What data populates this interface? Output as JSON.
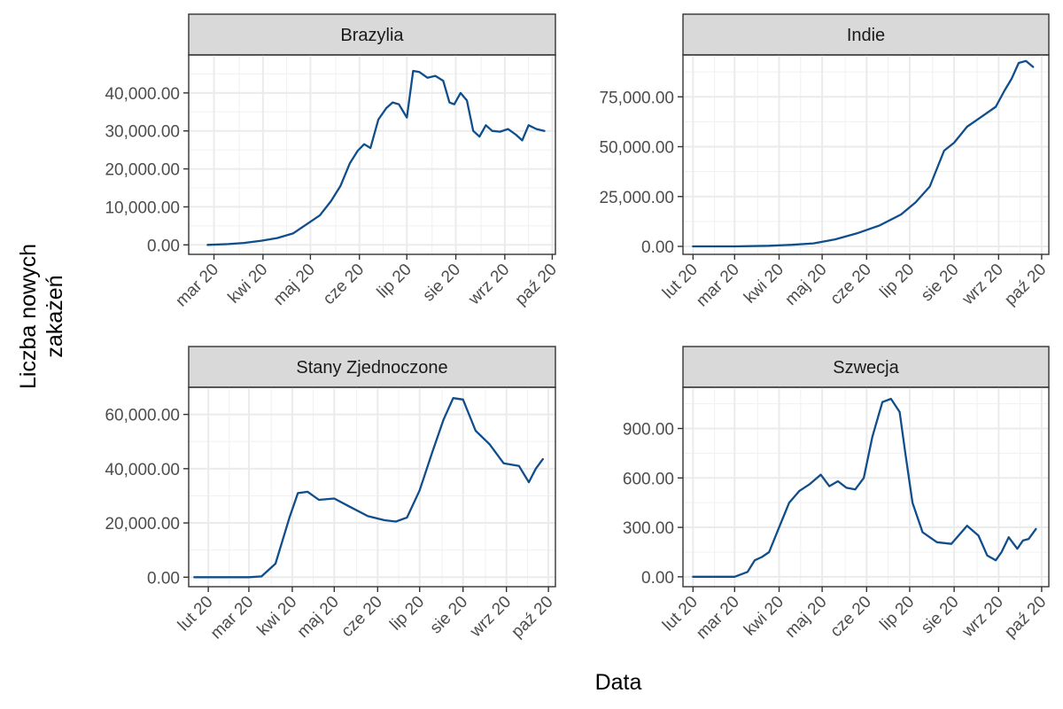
{
  "figure": {
    "xlabel": "Data",
    "ylabel_line1": "Liczba nowych",
    "ylabel_line2": "zakażeń",
    "line_color": "#104e8b"
  },
  "chart_data": [
    {
      "type": "line",
      "title": "Brazylia",
      "x_ticks": [
        {
          "date": "2020-03-01",
          "label": "mar 20"
        },
        {
          "date": "2020-04-01",
          "label": "kwi 20"
        },
        {
          "date": "2020-05-01",
          "label": "maj 20"
        },
        {
          "date": "2020-06-01",
          "label": "cze 20"
        },
        {
          "date": "2020-07-01",
          "label": "lip 20"
        },
        {
          "date": "2020-08-01",
          "label": "sie 20"
        },
        {
          "date": "2020-09-01",
          "label": "wrz 20"
        },
        {
          "date": "2020-10-01",
          "label": "paź 20"
        }
      ],
      "xlim": [
        "2020-02-14",
        "2020-10-03"
      ],
      "y_ticks": [
        {
          "value": 0,
          "label": "0.00"
        },
        {
          "value": 10000,
          "label": "10,000.00"
        },
        {
          "value": 20000,
          "label": "20,000.00"
        },
        {
          "value": 30000,
          "label": "30,000.00"
        },
        {
          "value": 40000,
          "label": "40,000.00"
        }
      ],
      "ylim": [
        -2500,
        50000
      ],
      "series": [
        {
          "x": [
            "2020-02-26",
            "2020-03-10",
            "2020-03-20",
            "2020-03-31",
            "2020-04-10",
            "2020-04-20",
            "2020-04-30",
            "2020-05-07",
            "2020-05-14",
            "2020-05-20",
            "2020-05-26",
            "2020-05-31",
            "2020-06-04",
            "2020-06-08",
            "2020-06-13",
            "2020-06-18",
            "2020-06-22",
            "2020-06-26",
            "2020-07-01",
            "2020-07-05",
            "2020-07-09",
            "2020-07-14",
            "2020-07-19",
            "2020-07-24",
            "2020-07-28",
            "2020-07-31",
            "2020-08-04",
            "2020-08-08",
            "2020-08-12",
            "2020-08-16",
            "2020-08-20",
            "2020-08-24",
            "2020-08-29",
            "2020-09-03",
            "2020-09-08",
            "2020-09-12",
            "2020-09-16",
            "2020-09-21",
            "2020-09-26"
          ],
          "y": [
            0,
            200,
            500,
            1100,
            1800,
            3000,
            5800,
            7800,
            11500,
            15500,
            21500,
            24800,
            26500,
            25500,
            33000,
            36000,
            37500,
            37000,
            33500,
            45800,
            45500,
            44000,
            44500,
            43200,
            37500,
            37000,
            40000,
            38000,
            30000,
            28500,
            31500,
            30000,
            29800,
            30500,
            29000,
            27500,
            31500,
            30500,
            30000
          ]
        }
      ]
    },
    {
      "type": "line",
      "title": "Indie",
      "x_ticks": [
        {
          "date": "2020-02-01",
          "label": "lut 20"
        },
        {
          "date": "2020-03-01",
          "label": "mar 20"
        },
        {
          "date": "2020-04-01",
          "label": "kwi 20"
        },
        {
          "date": "2020-05-01",
          "label": "maj 20"
        },
        {
          "date": "2020-06-01",
          "label": "cze 20"
        },
        {
          "date": "2020-07-01",
          "label": "lip 20"
        },
        {
          "date": "2020-08-01",
          "label": "sie 20"
        },
        {
          "date": "2020-09-01",
          "label": "wrz 20"
        },
        {
          "date": "2020-10-01",
          "label": "paź 20"
        }
      ],
      "xlim": [
        "2020-01-25",
        "2020-10-06"
      ],
      "y_ticks": [
        {
          "value": 0,
          "label": "0.00"
        },
        {
          "value": 25000,
          "label": "25,000.00"
        },
        {
          "value": 50000,
          "label": "50,000.00"
        },
        {
          "value": 75000,
          "label": "75,000.00"
        }
      ],
      "ylim": [
        -4000,
        96000
      ],
      "series": [
        {
          "x": [
            "2020-02-01",
            "2020-03-01",
            "2020-03-25",
            "2020-04-10",
            "2020-04-25",
            "2020-05-10",
            "2020-05-25",
            "2020-06-10",
            "2020-06-25",
            "2020-07-05",
            "2020-07-15",
            "2020-07-25",
            "2020-08-01",
            "2020-08-10",
            "2020-08-20",
            "2020-08-30",
            "2020-09-05",
            "2020-09-10",
            "2020-09-15",
            "2020-09-20",
            "2020-09-25"
          ],
          "y": [
            0,
            0,
            300,
            800,
            1500,
            3500,
            6500,
            10500,
            16000,
            22000,
            30000,
            48000,
            52000,
            60000,
            65000,
            70000,
            78000,
            84000,
            92000,
            93000,
            90000
          ]
        }
      ]
    },
    {
      "type": "line",
      "title": "Stany Zjednoczone",
      "x_ticks": [
        {
          "date": "2020-02-01",
          "label": "lut 20"
        },
        {
          "date": "2020-03-01",
          "label": "mar 20"
        },
        {
          "date": "2020-04-01",
          "label": "kwi 20"
        },
        {
          "date": "2020-05-01",
          "label": "maj 20"
        },
        {
          "date": "2020-06-01",
          "label": "cze 20"
        },
        {
          "date": "2020-07-01",
          "label": "lip 20"
        },
        {
          "date": "2020-08-01",
          "label": "sie 20"
        },
        {
          "date": "2020-09-01",
          "label": "wrz 20"
        },
        {
          "date": "2020-10-01",
          "label": "paź 20"
        }
      ],
      "xlim": [
        "2020-01-18",
        "2020-10-06"
      ],
      "y_ticks": [
        {
          "value": 0,
          "label": "0.00"
        },
        {
          "value": 20000,
          "label": "20,000.00"
        },
        {
          "value": 40000,
          "label": "40,000.00"
        },
        {
          "value": 60000,
          "label": "60,000.00"
        }
      ],
      "ylim": [
        -3500,
        70000
      ],
      "series": [
        {
          "x": [
            "2020-01-22",
            "2020-03-01",
            "2020-03-10",
            "2020-03-20",
            "2020-03-30",
            "2020-04-05",
            "2020-04-12",
            "2020-04-20",
            "2020-05-01",
            "2020-05-12",
            "2020-05-25",
            "2020-06-06",
            "2020-06-14",
            "2020-06-22",
            "2020-07-01",
            "2020-07-10",
            "2020-07-18",
            "2020-07-25",
            "2020-08-01",
            "2020-08-10",
            "2020-08-20",
            "2020-08-30",
            "2020-09-10",
            "2020-09-17",
            "2020-09-22",
            "2020-09-27"
          ],
          "y": [
            0,
            0,
            300,
            5000,
            22000,
            31000,
            31500,
            28500,
            29000,
            26000,
            22500,
            21000,
            20500,
            22000,
            32000,
            46000,
            58000,
            66000,
            65500,
            54000,
            49000,
            42000,
            41000,
            35000,
            40000,
            43500
          ]
        }
      ]
    },
    {
      "type": "line",
      "title": "Szwecja",
      "x_ticks": [
        {
          "date": "2020-02-01",
          "label": "lut 20"
        },
        {
          "date": "2020-03-01",
          "label": "mar 20"
        },
        {
          "date": "2020-04-01",
          "label": "kwi 20"
        },
        {
          "date": "2020-05-01",
          "label": "maj 20"
        },
        {
          "date": "2020-06-01",
          "label": "cze 20"
        },
        {
          "date": "2020-07-01",
          "label": "lip 20"
        },
        {
          "date": "2020-08-01",
          "label": "sie 20"
        },
        {
          "date": "2020-09-01",
          "label": "wrz 20"
        },
        {
          "date": "2020-10-01",
          "label": "paź 20"
        }
      ],
      "xlim": [
        "2020-01-25",
        "2020-10-06"
      ],
      "y_ticks": [
        {
          "value": 0,
          "label": "0.00"
        },
        {
          "value": 300,
          "label": "300.00"
        },
        {
          "value": 600,
          "label": "600.00"
        },
        {
          "value": 900,
          "label": "900.00"
        }
      ],
      "ylim": [
        -60,
        1150
      ],
      "series": [
        {
          "x": [
            "2020-02-01",
            "2020-03-01",
            "2020-03-10",
            "2020-03-15",
            "2020-03-20",
            "2020-03-25",
            "2020-04-01",
            "2020-04-08",
            "2020-04-15",
            "2020-04-22",
            "2020-04-30",
            "2020-05-06",
            "2020-05-12",
            "2020-05-18",
            "2020-05-24",
            "2020-05-30",
            "2020-06-05",
            "2020-06-12",
            "2020-06-18",
            "2020-06-24",
            "2020-06-28",
            "2020-07-03",
            "2020-07-10",
            "2020-07-20",
            "2020-07-30",
            "2020-08-10",
            "2020-08-18",
            "2020-08-24",
            "2020-08-30",
            "2020-09-03",
            "2020-09-08",
            "2020-09-14",
            "2020-09-18",
            "2020-09-22",
            "2020-09-27"
          ],
          "y": [
            0,
            0,
            30,
            100,
            120,
            150,
            300,
            450,
            520,
            560,
            620,
            550,
            580,
            540,
            530,
            600,
            850,
            1060,
            1080,
            1000,
            750,
            450,
            270,
            210,
            200,
            310,
            250,
            130,
            100,
            150,
            240,
            170,
            220,
            230,
            290
          ]
        }
      ]
    }
  ]
}
